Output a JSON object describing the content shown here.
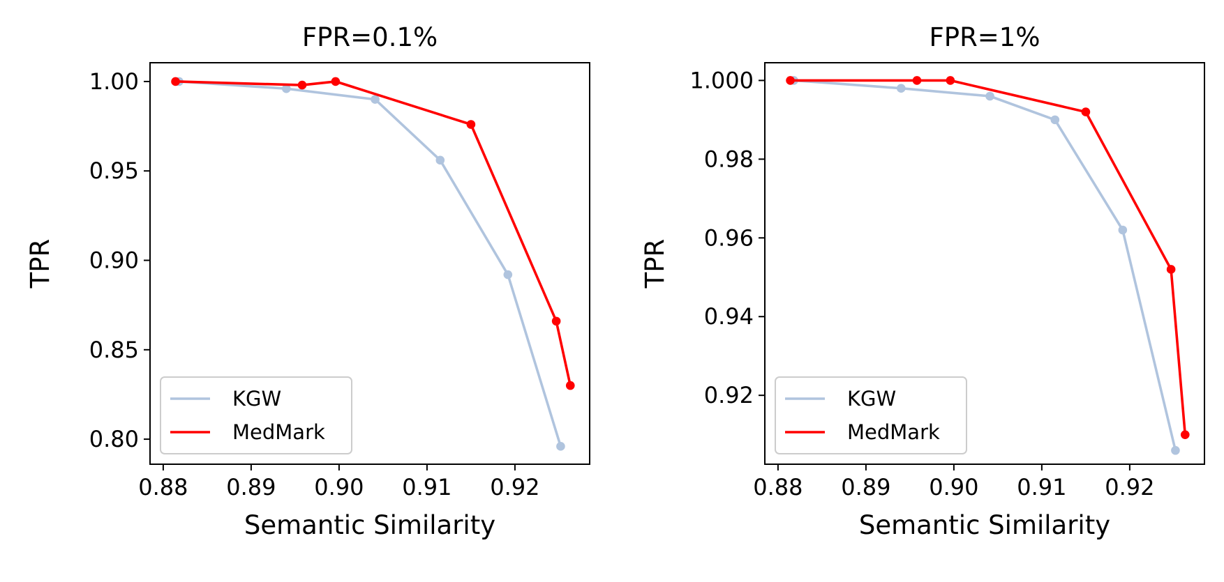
{
  "chart_data": [
    {
      "type": "line",
      "title": "FPR=0.1%",
      "xlabel": "Semantic Similarity",
      "ylabel": "TPR",
      "xlim": [
        0.8785,
        0.9285
      ],
      "ylim": [
        0.786,
        1.0105
      ],
      "xticks": [
        0.88,
        0.89,
        0.9,
        0.91,
        0.92
      ],
      "xtick_labels": [
        "0.88",
        "0.89",
        "0.90",
        "0.91",
        "0.92"
      ],
      "yticks": [
        0.8,
        0.85,
        0.9,
        0.95,
        1.0
      ],
      "ytick_labels": [
        "0.80",
        "0.85",
        "0.90",
        "0.95",
        "1.00"
      ],
      "grid": false,
      "legend_position": "lower-left",
      "series": [
        {
          "name": "KGW",
          "color": "#b0c4de",
          "x": [
            0.8818,
            0.894,
            0.9041,
            0.9115,
            0.9192,
            0.9252
          ],
          "y": [
            1.0,
            0.996,
            0.99,
            0.956,
            0.892,
            0.796
          ]
        },
        {
          "name": "MedMark",
          "color": "#ff0000",
          "x": [
            0.8814,
            0.8958,
            0.8996,
            0.915,
            0.9247,
            0.9263
          ],
          "y": [
            1.0,
            0.998,
            1.0,
            0.976,
            0.866,
            0.83
          ]
        }
      ]
    },
    {
      "type": "line",
      "title": "FPR=1%",
      "xlabel": "Semantic Similarity",
      "ylabel": "TPR",
      "xlim": [
        0.8785,
        0.9285
      ],
      "ylim": [
        0.9025,
        1.0045
      ],
      "xticks": [
        0.88,
        0.89,
        0.9,
        0.91,
        0.92
      ],
      "xtick_labels": [
        "0.88",
        "0.89",
        "0.90",
        "0.91",
        "0.92"
      ],
      "yticks": [
        0.92,
        0.94,
        0.96,
        0.98,
        1.0
      ],
      "ytick_labels": [
        "0.92",
        "0.94",
        "0.96",
        "0.98",
        "1.000"
      ],
      "grid": false,
      "legend_position": "lower-left",
      "series": [
        {
          "name": "KGW",
          "color": "#b0c4de",
          "x": [
            0.8818,
            0.894,
            0.9041,
            0.9115,
            0.9192,
            0.9252
          ],
          "y": [
            1.0,
            0.998,
            0.996,
            0.99,
            0.962,
            0.906
          ]
        },
        {
          "name": "MedMark",
          "color": "#ff0000",
          "x": [
            0.8814,
            0.8958,
            0.8996,
            0.915,
            0.9247,
            0.9263
          ],
          "y": [
            1.0,
            1.0,
            1.0,
            0.992,
            0.952,
            0.91
          ]
        }
      ]
    }
  ]
}
